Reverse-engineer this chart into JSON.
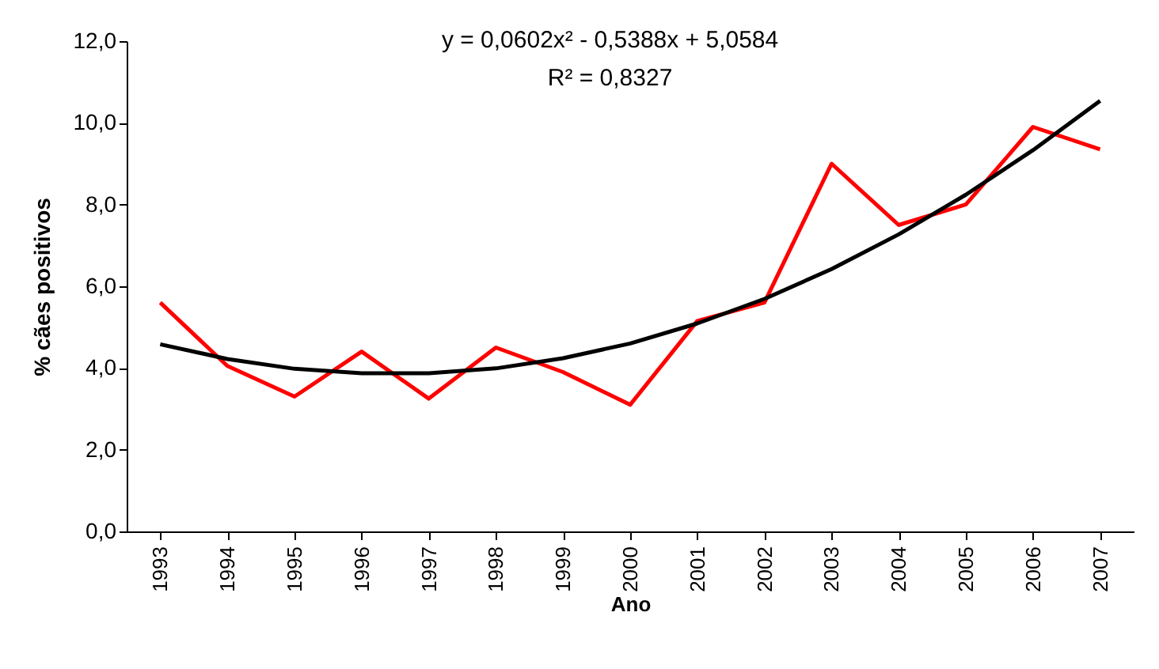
{
  "chart_data": {
    "type": "line",
    "xlabel": "Ano",
    "ylabel": "% cães positivos",
    "categories": [
      "1993",
      "1994",
      "1995",
      "1996",
      "1997",
      "1998",
      "1999",
      "2000",
      "2001",
      "2002",
      "2003",
      "2004",
      "2005",
      "2006",
      "2007"
    ],
    "series": [
      {
        "color": "#ff0000",
        "values": [
          5.6,
          4.05,
          3.3,
          4.4,
          3.25,
          4.5,
          3.9,
          3.1,
          5.15,
          5.6,
          9.0,
          7.5,
          8.0,
          9.9,
          9.35
        ]
      },
      {
        "type": "line",
        "color": "#000000",
        "values": [
          4.58,
          4.22,
          3.98,
          3.87,
          3.87,
          3.99,
          4.24,
          4.6,
          5.09,
          5.69,
          6.42,
          7.27,
          8.24,
          9.33,
          10.54
        ]
      }
    ],
    "annotations": [
      "y = 0,0602x² - 0,5388x + 5,0584",
      "R² = 0,8327"
    ],
    "ylim": [
      0,
      12
    ],
    "yticks": [
      {
        "value": 0,
        "label": "0,0"
      },
      {
        "value": 2,
        "label": "2,0"
      },
      {
        "value": 4,
        "label": "4,0"
      },
      {
        "value": 6,
        "label": "6,0"
      },
      {
        "value": 8,
        "label": "8,0"
      },
      {
        "value": 10,
        "label": "10,0"
      },
      {
        "value": 12,
        "label": "12,0"
      }
    ],
    "grid": false,
    "marker": "none",
    "line_style": "solid"
  }
}
